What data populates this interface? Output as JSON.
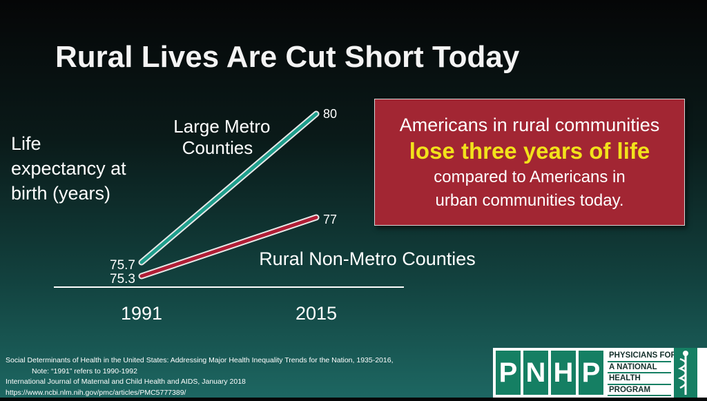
{
  "title": "Rural Lives Are Cut Short Today",
  "chart_data": {
    "type": "line",
    "x": [
      "1991",
      "2015"
    ],
    "ylabel": "Life expectancy at birth (years)",
    "series": [
      {
        "name": "Large Metro Counties",
        "values": [
          75.7,
          80
        ],
        "labels": [
          "75.7",
          "80"
        ],
        "color": "#1f9e8c"
      },
      {
        "name": "Rural Non-Metro Counties",
        "values": [
          75.3,
          77
        ],
        "labels": [
          "75.3",
          "77"
        ],
        "color": "#b01e36"
      }
    ],
    "ylim": [
      75.3,
      80
    ],
    "grid": false,
    "legend": "none"
  },
  "callout": {
    "line1": "Americans in rural communities",
    "highlight": "lose three years of life",
    "line3": "compared to Americans in",
    "line4": "urban communities today."
  },
  "source": {
    "line1": "Social Determinants of Health in the United States: Addressing Major Health Inequality Trends for the Nation, 1935-2016,",
    "line2": "Note: “1991” refers to 1990-1992",
    "line3": "International Journal of Maternal and Child Health and AIDS, January 2018",
    "line4": "https://www.ncbi.nlm.nih.gov/pmc/articles/PMC5777389/"
  },
  "logo": {
    "letters": [
      "P",
      "N",
      "H",
      "P"
    ],
    "words": [
      "PHYSICIANS FOR",
      "A NATIONAL",
      "HEALTH",
      "PROGRAM"
    ],
    "icon": "caduceus-icon",
    "accent": "#157f63"
  }
}
